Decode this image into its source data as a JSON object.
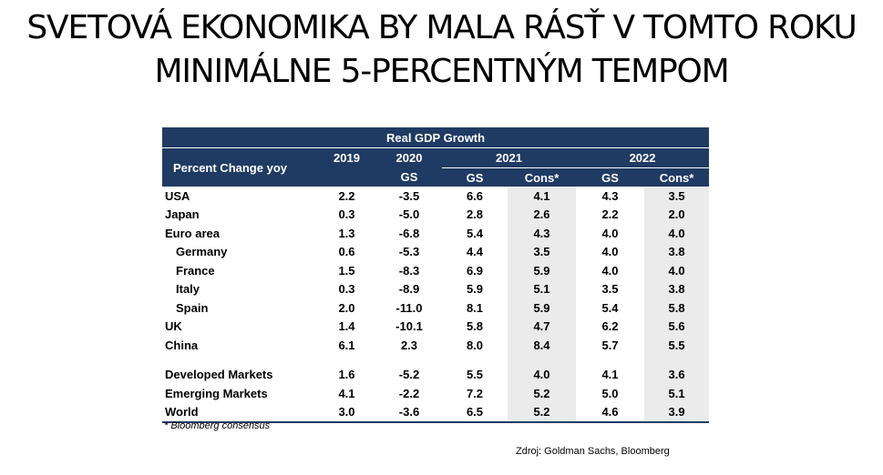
{
  "title": {
    "line1": "SVETOVÁ EKONOMIKA BY MALA RÁSŤ V TOMTO ROKU",
    "line2": "MINIMÁLNE 5-PERCENTNÝM TEMPOM"
  },
  "table": {
    "title": "Real GDP Growth",
    "row_header": "Percent Change yoy",
    "years": {
      "y2019": "2019",
      "y2020": "2020",
      "y2021": "2021",
      "y2022": "2022"
    },
    "sub": {
      "gs2020": "GS",
      "gs2021": "GS",
      "cons2021": "Cons*",
      "gs2022": "GS",
      "cons2022": "Cons*"
    },
    "rows": [
      {
        "name": "USA",
        "v2019": "2.2",
        "v2020": "-3.5",
        "gs2021": "6.6",
        "cons2021": "4.1",
        "gs2022": "4.3",
        "cons2022": "3.5"
      },
      {
        "name": "Japan",
        "v2019": "0.3",
        "v2020": "-5.0",
        "gs2021": "2.8",
        "cons2021": "2.6",
        "gs2022": "2.2",
        "cons2022": "2.0"
      },
      {
        "name": "Euro area",
        "v2019": "1.3",
        "v2020": "-6.8",
        "gs2021": "5.4",
        "cons2021": "4.3",
        "gs2022": "4.0",
        "cons2022": "4.0"
      },
      {
        "name": "Germany",
        "v2019": "0.6",
        "v2020": "-5.3",
        "gs2021": "4.4",
        "cons2021": "3.5",
        "gs2022": "4.0",
        "cons2022": "3.8"
      },
      {
        "name": "France",
        "v2019": "1.5",
        "v2020": "-8.3",
        "gs2021": "6.9",
        "cons2021": "5.9",
        "gs2022": "4.0",
        "cons2022": "4.0"
      },
      {
        "name": "Italy",
        "v2019": "0.3",
        "v2020": "-8.9",
        "gs2021": "5.9",
        "cons2021": "5.1",
        "gs2022": "3.5",
        "cons2022": "3.8"
      },
      {
        "name": "Spain",
        "v2019": "2.0",
        "v2020": "-11.0",
        "gs2021": "8.1",
        "cons2021": "5.9",
        "gs2022": "5.4",
        "cons2022": "5.8"
      },
      {
        "name": "UK",
        "v2019": "1.4",
        "v2020": "-10.1",
        "gs2021": "5.8",
        "cons2021": "4.7",
        "gs2022": "6.2",
        "cons2022": "5.6"
      },
      {
        "name": "China",
        "v2019": "6.1",
        "v2020": "2.3",
        "gs2021": "8.0",
        "cons2021": "8.4",
        "gs2022": "5.7",
        "cons2022": "5.5"
      },
      {
        "name": "Developed Markets",
        "v2019": "1.6",
        "v2020": "-5.2",
        "gs2021": "5.5",
        "cons2021": "4.0",
        "gs2022": "4.1",
        "cons2022": "3.6"
      },
      {
        "name": "Emerging Markets",
        "v2019": "4.1",
        "v2020": "-2.2",
        "gs2021": "7.2",
        "cons2021": "5.2",
        "gs2022": "5.0",
        "cons2022": "5.1"
      },
      {
        "name": "World",
        "v2019": "3.0",
        "v2020": "-3.6",
        "gs2021": "6.5",
        "cons2021": "5.2",
        "gs2022": "4.6",
        "cons2022": "3.9"
      }
    ]
  },
  "footnote": "* Bloomberg consensus",
  "source": "Zdroj: Goldman Sachs, Bloomberg"
}
